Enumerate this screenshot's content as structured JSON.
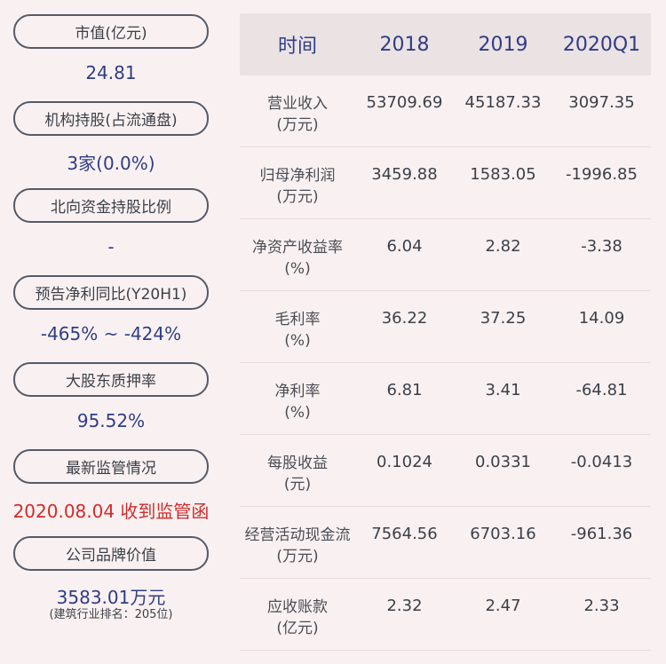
{
  "left_panel": [
    {
      "label": "市值(亿元)",
      "value": "24.81"
    },
    {
      "label": "机构持股(占流通盘)",
      "value": "3家(0.0%)"
    },
    {
      "label": "北向资金持股比例",
      "value": "-"
    },
    {
      "label": "预告净利同比(Y20H1)",
      "value": "-465% ~ -424%"
    },
    {
      "label": "大股东质押率",
      "value": "95.52%"
    },
    {
      "label": "最新监管情况",
      "value": "2020.08.04 收到监管函",
      "value_color": "#d42a2a"
    },
    {
      "label": "公司品牌价值",
      "value": "3583.01万元",
      "note": "(建筑行业排名：205位)"
    }
  ],
  "table": {
    "headers": [
      "时间",
      "2018",
      "2019",
      "2020Q1"
    ],
    "rows": [
      {
        "label": "营业收入",
        "unit": "(万元)",
        "values": [
          "53709.69",
          "45187.33",
          "3097.35"
        ]
      },
      {
        "label": "归母净利润",
        "unit": "(万元)",
        "values": [
          "3459.88",
          "1583.05",
          "-1996.85"
        ]
      },
      {
        "label": "净资产收益率",
        "unit": "(%)",
        "values": [
          "6.04",
          "2.82",
          "-3.38"
        ]
      },
      {
        "label": "毛利率",
        "unit": "(%)",
        "values": [
          "36.22",
          "37.25",
          "14.09"
        ]
      },
      {
        "label": "净利率",
        "unit": "(%)",
        "values": [
          "6.81",
          "3.41",
          "-64.81"
        ]
      },
      {
        "label": "每股收益",
        "unit": "(元)",
        "values": [
          "0.1024",
          "0.0331",
          "-0.0413"
        ]
      },
      {
        "label": "经营活动现金流",
        "unit": "(万元)",
        "values": [
          "7564.56",
          "6703.16",
          "-961.36"
        ]
      },
      {
        "label": "应收账款",
        "unit": "(亿元)",
        "values": [
          "2.32",
          "2.47",
          "2.33"
        ]
      }
    ]
  }
}
